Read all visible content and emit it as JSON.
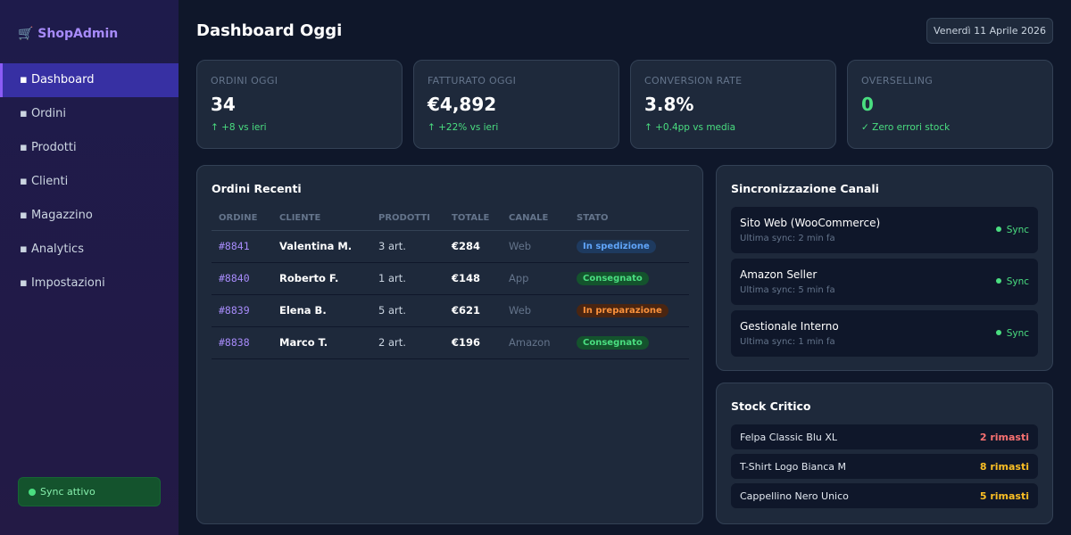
{
  "sidebar": {
    "brand": "🛒 ShopAdmin",
    "nav": [
      "▪ Dashboard",
      "▪ Ordini",
      "▪ Prodotti",
      "▪ Clienti",
      "▪ Magazzino",
      "▪ Analytics",
      "▪ Impostazioni"
    ],
    "sync_status": "Sync attivo"
  },
  "header": {
    "title": "Dashboard Oggi",
    "date": "Venerdì 11 Aprile 2026"
  },
  "kpis": [
    {
      "label": "ORDINI OGGI",
      "value": "34",
      "delta": "↑ +8 vs ieri",
      "color": "#ffffff"
    },
    {
      "label": "FATTURATO OGGI",
      "value": "€4,892",
      "delta": "↑ +22% vs ieri",
      "color": "#ffffff"
    },
    {
      "label": "CONVERSION RATE",
      "value": "3.8%",
      "delta": "↑ +0.4pp vs media",
      "color": "#ffffff"
    },
    {
      "label": "OVERSELLING",
      "value": "0",
      "delta": "✓ Zero errori stock",
      "color": "#4ade80"
    }
  ],
  "orders": {
    "title": "Ordini Recenti",
    "columns": [
      "ORDINE",
      "CLIENTE",
      "PRODOTTI",
      "TOTALE",
      "CANALE",
      "STATO"
    ],
    "rows": [
      {
        "id": "#8841",
        "client": "Valentina M.",
        "products": "3 art.",
        "total": "€284",
        "channel": "Web",
        "status": "In spedizione",
        "status_color": "#60a5fa",
        "status_bg": "#1e3a5f"
      },
      {
        "id": "#8840",
        "client": "Roberto F.",
        "products": "1 art.",
        "total": "€148",
        "channel": "App",
        "status": "Consegnato",
        "status_color": "#4ade80",
        "status_bg": "#14532d"
      },
      {
        "id": "#8839",
        "client": "Elena B.",
        "products": "5 art.",
        "total": "€621",
        "channel": "Web",
        "status": "In preparazione",
        "status_color": "#fb923c",
        "status_bg": "#4a2511"
      },
      {
        "id": "#8838",
        "client": "Marco T.",
        "products": "2 art.",
        "total": "€196",
        "channel": "Amazon",
        "status": "Consegnato",
        "status_color": "#4ade80",
        "status_bg": "#14532d"
      }
    ]
  },
  "channels": {
    "title": "Sincronizzazione Canali",
    "items": [
      {
        "name": "Sito Web (WooCommerce)",
        "last_sync": "Ultima sync: 2 min fa",
        "status": "Sync"
      },
      {
        "name": "Amazon Seller",
        "last_sync": "Ultima sync: 5 min fa",
        "status": "Sync"
      },
      {
        "name": "Gestionale Interno",
        "last_sync": "Ultima sync: 1 min fa",
        "status": "Sync"
      }
    ]
  },
  "stock": {
    "title": "Stock Critico",
    "items": [
      {
        "name": "Felpa Classic Blu XL",
        "remaining": "2 rimasti",
        "color": "#f87171"
      },
      {
        "name": "T-Shirt Logo Bianca M",
        "remaining": "8 rimasti",
        "color": "#fbbf24"
      },
      {
        "name": "Cappellino Nero Unico",
        "remaining": "5 rimasti",
        "color": "#fbbf24"
      }
    ]
  }
}
